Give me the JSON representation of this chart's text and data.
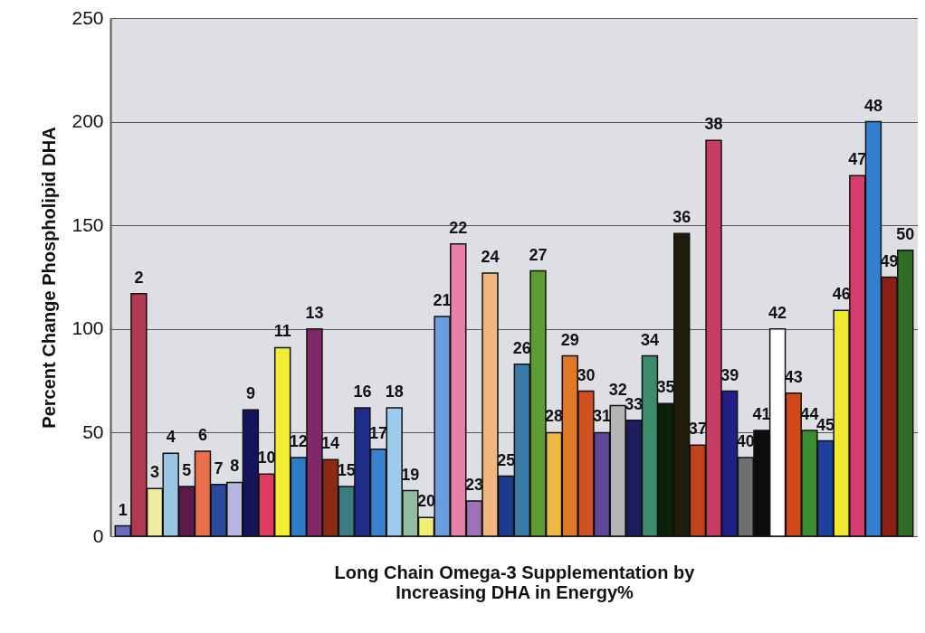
{
  "chart_data": {
    "type": "bar",
    "xlabel": "Long Chain Omega-3 Supplementation by\nIncreasing DHA in Energy%",
    "ylabel": "Percent Change Phospholipid DHA",
    "categories": [
      "1",
      "2",
      "3",
      "4",
      "5",
      "6",
      "7",
      "8",
      "9",
      "10",
      "11",
      "12",
      "13",
      "14",
      "15",
      "16",
      "17",
      "18",
      "19",
      "20",
      "21",
      "22",
      "23",
      "24",
      "25",
      "26",
      "27",
      "28",
      "29",
      "30",
      "31",
      "32",
      "33",
      "34",
      "35",
      "36",
      "37",
      "38",
      "39",
      "40",
      "41",
      "42",
      "43",
      "44",
      "45",
      "46",
      "47",
      "48",
      "49",
      "50"
    ],
    "values": [
      5,
      117,
      23,
      40,
      24,
      41,
      25,
      26,
      61,
      30,
      91,
      38,
      100,
      37,
      24,
      62,
      42,
      62,
      22,
      9,
      106,
      141,
      17,
      127,
      29,
      83,
      128,
      50,
      87,
      70,
      50,
      63,
      56,
      87,
      64,
      146,
      44,
      191,
      70,
      38,
      51,
      100,
      69,
      51,
      46,
      109,
      174,
      200,
      125,
      138
    ],
    "colors": [
      "#6b6bc0",
      "#b0384f",
      "#f0eca0",
      "#9cc4e4",
      "#5c1a4a",
      "#e8704c",
      "#2a4a9c",
      "#b8b4e0",
      "#14145a",
      "#e03a60",
      "#f4ec30",
      "#2e7cc8",
      "#802868",
      "#8c2a14",
      "#3a7c80",
      "#1c2c88",
      "#3a80d0",
      "#9ccaec",
      "#90bca0",
      "#f0f070",
      "#6c9ce0",
      "#e880a8",
      "#a070b8",
      "#f0b880",
      "#1c3a90",
      "#3a7ca8",
      "#5c9c30",
      "#f0b840",
      "#e07828",
      "#d05020",
      "#604898",
      "#b4b4b4",
      "#1c1c60",
      "#3c8c6c",
      "#0c200c",
      "#201c0c",
      "#c04418",
      "#c83c64",
      "#202088",
      "#707070",
      "#0c0c0c",
      "#ffffff",
      "#d04818",
      "#3c8c30",
      "#2040a0",
      "#f0e830",
      "#d83c6c",
      "#3480d0",
      "#8c2014",
      "#306c28"
    ],
    "ylim": [
      0,
      250
    ],
    "yticks": [
      0,
      50,
      100,
      150,
      200,
      250
    ],
    "grid": "y"
  }
}
